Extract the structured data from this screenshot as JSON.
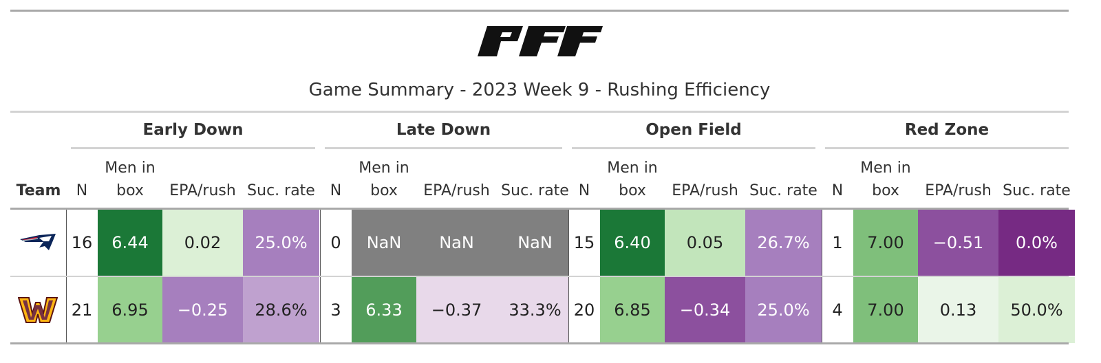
{
  "header": {
    "logo_text": "PFF",
    "title": "Game Summary - 2023 Week 9 - Rushing Efficiency"
  },
  "groups": [
    {
      "label": "Early Down"
    },
    {
      "label": "Late Down"
    },
    {
      "label": "Open Field"
    },
    {
      "label": "Red Zone"
    }
  ],
  "columns": {
    "team": "Team",
    "n": "N",
    "men_in_box_line1": "Men in",
    "men_in_box_line2": "box",
    "epa_rush": "EPA/rush",
    "suc_rate": "Suc. rate"
  },
  "rows": [
    {
      "team_logo": "patriots-logo",
      "cells": [
        {
          "text": "16",
          "bg": "#ffffff",
          "fg": "#222222"
        },
        {
          "text": "6.44",
          "bg": "#1b7837",
          "fg": "#ffffff"
        },
        {
          "text": "0.02",
          "bg": "#dcf0d6",
          "fg": "#222222"
        },
        {
          "text": "25.0%",
          "bg": "#a67fbe",
          "fg": "#ffffff"
        },
        {
          "text": "0",
          "bg": "#ffffff",
          "fg": "#222222"
        },
        {
          "text": "NaN",
          "bg": "#808080",
          "fg": "#ffffff"
        },
        {
          "text": "NaN",
          "bg": "#808080",
          "fg": "#ffffff"
        },
        {
          "text": "NaN",
          "bg": "#808080",
          "fg": "#ffffff"
        },
        {
          "text": "15",
          "bg": "#ffffff",
          "fg": "#222222"
        },
        {
          "text": "6.40",
          "bg": "#1b7837",
          "fg": "#ffffff"
        },
        {
          "text": "0.05",
          "bg": "#c2e5bb",
          "fg": "#222222"
        },
        {
          "text": "26.7%",
          "bg": "#a67fbe",
          "fg": "#ffffff"
        },
        {
          "text": "1",
          "bg": "#ffffff",
          "fg": "#222222"
        },
        {
          "text": "7.00",
          "bg": "#7fbf7b",
          "fg": "#222222"
        },
        {
          "text": "−0.51",
          "bg": "#8c509e",
          "fg": "#ffffff"
        },
        {
          "text": "0.0%",
          "bg": "#762a83",
          "fg": "#ffffff"
        }
      ]
    },
    {
      "team_logo": "commanders-logo",
      "cells": [
        {
          "text": "21",
          "bg": "#ffffff",
          "fg": "#222222"
        },
        {
          "text": "6.95",
          "bg": "#97d08f",
          "fg": "#222222"
        },
        {
          "text": "−0.25",
          "bg": "#a67fbe",
          "fg": "#ffffff"
        },
        {
          "text": "28.6%",
          "bg": "#bfa1cf",
          "fg": "#222222"
        },
        {
          "text": "3",
          "bg": "#ffffff",
          "fg": "#222222"
        },
        {
          "text": "6.33",
          "bg": "#529d5a",
          "fg": "#ffffff"
        },
        {
          "text": "−0.37",
          "bg": "#e8d9ea",
          "fg": "#222222"
        },
        {
          "text": "33.3%",
          "bg": "#e8d9ea",
          "fg": "#222222"
        },
        {
          "text": "20",
          "bg": "#ffffff",
          "fg": "#222222"
        },
        {
          "text": "6.85",
          "bg": "#97d08f",
          "fg": "#222222"
        },
        {
          "text": "−0.34",
          "bg": "#8c509e",
          "fg": "#ffffff"
        },
        {
          "text": "25.0%",
          "bg": "#a67fbe",
          "fg": "#ffffff"
        },
        {
          "text": "4",
          "bg": "#ffffff",
          "fg": "#222222"
        },
        {
          "text": "7.00",
          "bg": "#7fbf7b",
          "fg": "#222222"
        },
        {
          "text": "0.13",
          "bg": "#eaf5e8",
          "fg": "#222222"
        },
        {
          "text": "50.0%",
          "bg": "#dcf0d6",
          "fg": "#222222"
        }
      ]
    }
  ]
}
